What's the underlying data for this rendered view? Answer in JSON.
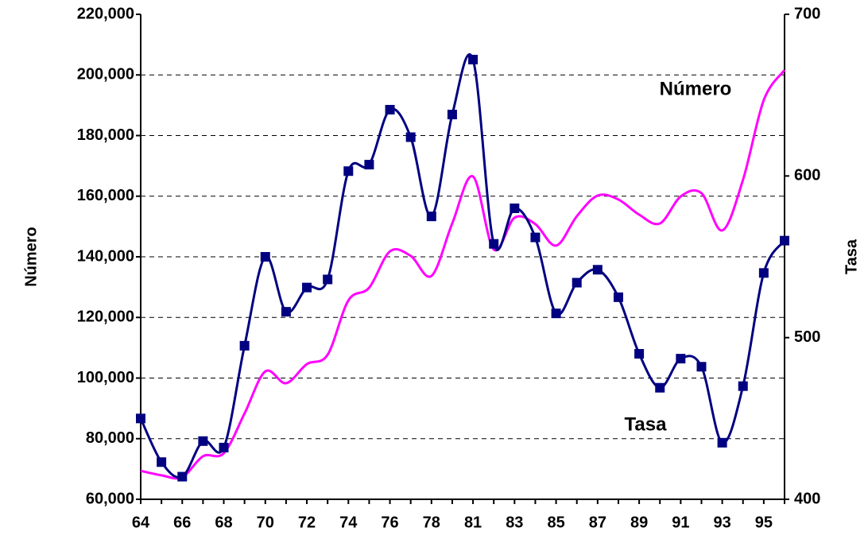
{
  "chart_data": {
    "type": "line",
    "y_label": "Número",
    "y2_label": "Tasa",
    "categories": [
      "64",
      null,
      "66",
      null,
      "68",
      null,
      "70",
      null,
      "72",
      null,
      "74",
      null,
      "76",
      null,
      "78",
      null,
      "81",
      null,
      "83",
      null,
      "85",
      null,
      "87",
      null,
      "89",
      null,
      "91",
      null,
      "93",
      null,
      "95",
      null
    ],
    "series": [
      {
        "name": "Número",
        "color": "#ff00ff",
        "axis": "y",
        "values": [
          69400,
          67900,
          67300,
          74200,
          75200,
          88300,
          102200,
          98300,
          104600,
          107700,
          125600,
          129800,
          141800,
          140300,
          133700,
          151000,
          166500,
          142400,
          152900,
          150800,
          143700,
          153400,
          160200,
          158900,
          153900,
          151000,
          159900,
          161000,
          148700,
          165400,
          191700,
          201600
        ]
      },
      {
        "name": "Tasa",
        "color": "#000080",
        "axis": "y2",
        "markers": true,
        "values": [
          450,
          423,
          414,
          436,
          432,
          495,
          550,
          516,
          531,
          536,
          603,
          607,
          641,
          624,
          575,
          638,
          672,
          558,
          580,
          562,
          515,
          534,
          542,
          525,
          490,
          469,
          487,
          482,
          435,
          470,
          540,
          560
        ]
      }
    ],
    "ylim": [
      60000,
      220000
    ],
    "yticks": [
      {
        "value": 60000,
        "label": "60,000"
      },
      {
        "value": 80000,
        "label": "80,000"
      },
      {
        "value": 100000,
        "label": "100,000"
      },
      {
        "value": 120000,
        "label": "120,000"
      },
      {
        "value": 140000,
        "label": "140,000"
      },
      {
        "value": 160000,
        "label": "160,000"
      },
      {
        "value": 180000,
        "label": "180,000"
      },
      {
        "value": 200000,
        "label": "200,000"
      },
      {
        "value": 220000,
        "label": "220,000"
      }
    ],
    "y2lim": [
      400,
      700
    ],
    "y2ticks": [
      400,
      500,
      600,
      700
    ],
    "grid": true
  }
}
